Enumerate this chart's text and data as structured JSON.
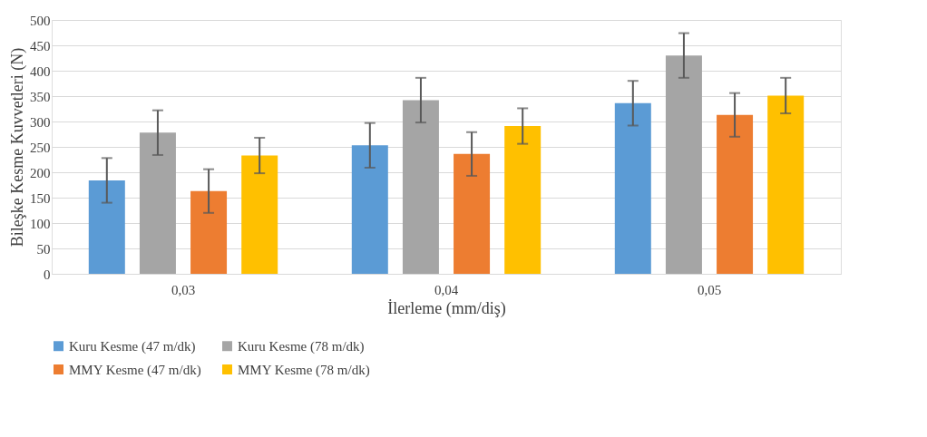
{
  "chart_data": {
    "type": "bar",
    "xlabel": "İlerleme (mm/diş)",
    "ylabel": "Bileşke Kesme Kuvvetleri (N)",
    "categories": [
      "0,03",
      "0,04",
      "0,05"
    ],
    "series": [
      {
        "name": "Kuru Kesme (47 m/dk)",
        "color": "#5b9bd5",
        "values": [
          184,
          253,
          336
        ],
        "errors": [
          44,
          44,
          44
        ]
      },
      {
        "name": "Kuru Kesme (78 m/dk)",
        "color": "#a5a5a5",
        "values": [
          278,
          342,
          430
        ],
        "errors": [
          44,
          44,
          44
        ]
      },
      {
        "name": "MMY Kesme (47 m/dk)",
        "color": "#ed7d31",
        "values": [
          163,
          236,
          313
        ],
        "errors": [
          43,
          43,
          43
        ]
      },
      {
        "name": "MMY Kesme (78 m/dk)",
        "color": "#ffc000",
        "values": [
          233,
          291,
          351
        ],
        "errors": [
          35,
          35,
          35
        ]
      }
    ],
    "ylim": [
      0,
      500
    ],
    "yticks": [
      0,
      50,
      100,
      150,
      200,
      250,
      300,
      350,
      400,
      450,
      500
    ],
    "grid": "y",
    "legend": "bottom"
  }
}
